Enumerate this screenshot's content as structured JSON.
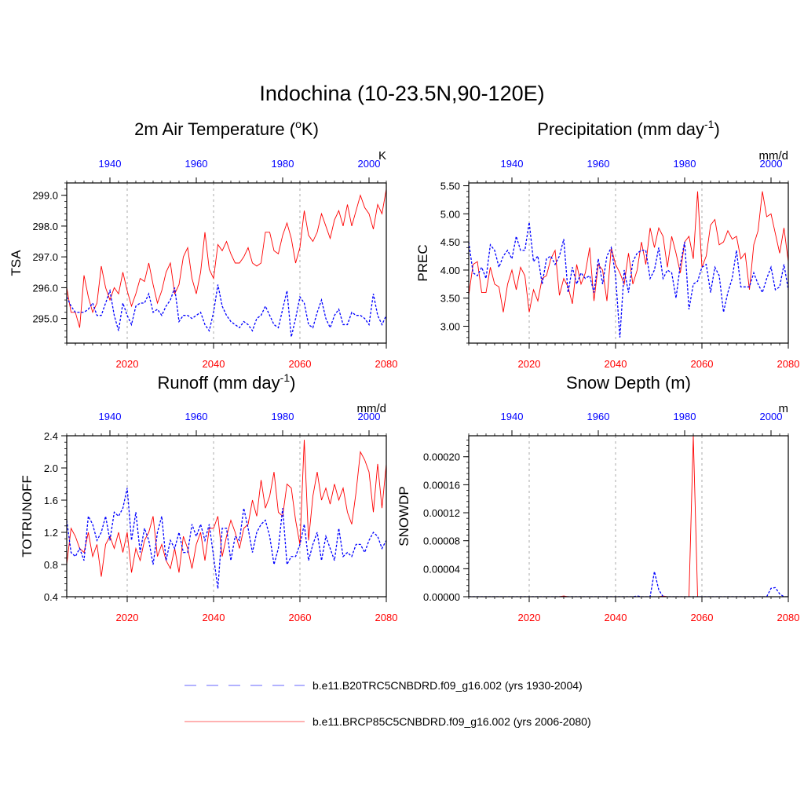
{
  "page_title": "Indochina (10-23.5N,90-120E)",
  "colors": {
    "historical": "#0000ff",
    "future": "#ff0000",
    "grid": "#aaaaaa",
    "axis": "#000000"
  },
  "chart_data": [
    {
      "type": "line",
      "id": "tsa",
      "title": "2m Air Temperature (",
      "title_sup": "o",
      "title_tail": "K)",
      "ylabel": "TSA",
      "units": "K",
      "ylim": [
        294.2,
        299.4
      ],
      "yticks": [
        295.0,
        296.0,
        297.0,
        298.0,
        299.0
      ],
      "ytick_labels": [
        "295.0",
        "296.0",
        "297.0",
        "298.0",
        "299.0"
      ],
      "bottom_axis": {
        "label_color": "#ff0000",
        "range": [
          2006,
          2080
        ],
        "ticks": [
          2020,
          2040,
          2060,
          2080
        ],
        "tick_labels": [
          "2020",
          "2040",
          "2060",
          "2080"
        ]
      },
      "top_axis": {
        "label_color": "#0000ff",
        "range": [
          1930,
          2004
        ],
        "ticks": [
          1940,
          1960,
          1980,
          2000
        ],
        "tick_labels": [
          "1940",
          "1960",
          "1980",
          "2000"
        ]
      },
      "series": [
        {
          "name": "b.e11.BRCP85C5CNBDRD.f09_g16.002 (yrs 2006-2080)",
          "axis": "bottom",
          "style": "solid",
          "x_start": 2006,
          "values": [
            296.0,
            295.2,
            295.2,
            294.7,
            296.4,
            295.7,
            295.2,
            295.5,
            296.7,
            296.0,
            295.6,
            296.0,
            295.8,
            296.5,
            295.9,
            295.4,
            295.8,
            296.3,
            296.2,
            296.8,
            296.1,
            295.5,
            295.9,
            296.5,
            296.8,
            295.8,
            296.1,
            297.0,
            297.3,
            296.3,
            295.8,
            296.5,
            297.8,
            296.6,
            296.3,
            297.4,
            297.2,
            297.5,
            297.1,
            296.8,
            296.8,
            297.0,
            297.3,
            296.8,
            296.7,
            296.8,
            297.8,
            297.8,
            297.2,
            297.1,
            297.7,
            298.1,
            297.6,
            296.8,
            297.3,
            298.5,
            297.7,
            297.5,
            297.8,
            298.4,
            298.0,
            297.6,
            298.2,
            298.5,
            298.0,
            298.7,
            298.0,
            298.5,
            299.0,
            298.6,
            298.4,
            297.9,
            298.7,
            298.4,
            299.2
          ]
        },
        {
          "name": "b.e11.B20TRC5CNBDRD.f09_g16.002 (yrs 1930-2004)",
          "axis": "top",
          "style": "dashed",
          "x_start": 1930,
          "values": [
            295.7,
            295.4,
            295.2,
            295.2,
            295.2,
            295.3,
            295.5,
            295.1,
            295.1,
            295.5,
            295.9,
            295.1,
            294.6,
            295.5,
            295.1,
            294.8,
            295.4,
            295.5,
            295.5,
            295.8,
            295.2,
            295.3,
            295.1,
            295.4,
            295.6,
            296.0,
            294.9,
            295.1,
            295.1,
            295.0,
            295.1,
            295.2,
            294.8,
            294.6,
            295.2,
            296.1,
            295.4,
            295.1,
            294.9,
            294.8,
            294.7,
            294.9,
            294.8,
            294.6,
            295.0,
            295.1,
            295.4,
            295.1,
            294.8,
            294.7,
            295.3,
            295.9,
            294.4,
            295.0,
            295.7,
            295.5,
            294.8,
            294.7,
            295.2,
            295.6,
            295.0,
            294.7,
            295.1,
            295.3,
            294.8,
            294.8,
            295.2,
            295.1,
            295.1,
            295.0,
            294.8,
            295.8,
            295.1,
            294.8,
            295.1
          ]
        }
      ]
    },
    {
      "type": "line",
      "id": "prec",
      "title": "Precipitation (mm day",
      "title_sup": "-1",
      "title_tail": ")",
      "ylabel": "PREC",
      "units": "mm/d",
      "ylim": [
        2.7,
        5.55
      ],
      "yticks": [
        3.0,
        3.5,
        4.0,
        4.5,
        5.0,
        5.5
      ],
      "ytick_labels": [
        "3.00",
        "3.50",
        "4.00",
        "4.50",
        "5.00",
        "5.50"
      ],
      "bottom_axis": {
        "label_color": "#ff0000",
        "range": [
          2006,
          2080
        ],
        "ticks": [
          2020,
          2040,
          2060,
          2080
        ],
        "tick_labels": [
          "2020",
          "2040",
          "2060",
          "2080"
        ]
      },
      "top_axis": {
        "label_color": "#0000ff",
        "range": [
          1930,
          2004
        ],
        "ticks": [
          1940,
          1960,
          1980,
          2000
        ],
        "tick_labels": [
          "1940",
          "1960",
          "1980",
          "2000"
        ]
      },
      "series": [
        {
          "name": "b.e11.BRCP85C5CNBDRD.f09_g16.002 (yrs 2006-2080)",
          "axis": "bottom",
          "style": "solid",
          "x_start": 2006,
          "values": [
            3.55,
            4.1,
            4.15,
            3.6,
            3.6,
            4.05,
            3.75,
            3.7,
            3.25,
            3.75,
            4.0,
            3.65,
            4.05,
            3.9,
            3.25,
            3.65,
            3.45,
            3.85,
            3.9,
            4.2,
            4.35,
            3.55,
            3.85,
            3.7,
            3.4,
            4.1,
            3.75,
            3.95,
            4.4,
            3.45,
            4.1,
            4.0,
            3.45,
            4.4,
            4.1,
            3.95,
            3.75,
            4.3,
            3.75,
            4.0,
            4.5,
            4.1,
            4.75,
            4.4,
            4.75,
            4.6,
            4.05,
            4.6,
            4.3,
            3.95,
            4.5,
            4.6,
            4.2,
            5.4,
            4.05,
            4.25,
            4.8,
            4.9,
            4.45,
            4.5,
            4.7,
            4.55,
            4.6,
            4.2,
            4.3,
            3.65,
            4.45,
            4.7,
            5.4,
            4.95,
            5.0,
            4.65,
            4.3,
            4.75,
            4.15
          ]
        },
        {
          "name": "b.e11.B20TRC5CNBDRD.f09_g16.002 (yrs 1930-2004)",
          "axis": "top",
          "style": "dashed",
          "x_start": 1930,
          "values": [
            4.5,
            3.95,
            3.9,
            4.05,
            3.85,
            4.45,
            4.35,
            4.05,
            4.25,
            4.35,
            4.2,
            4.6,
            4.35,
            4.35,
            4.85,
            4.15,
            4.25,
            3.75,
            4.2,
            4.25,
            4.1,
            4.25,
            4.55,
            3.6,
            4.05,
            3.75,
            3.95,
            3.85,
            3.9,
            3.6,
            4.2,
            3.75,
            4.25,
            4.4,
            3.9,
            2.8,
            4.0,
            3.6,
            4.15,
            4.3,
            4.35,
            4.35,
            3.85,
            4.0,
            4.4,
            3.85,
            4.0,
            3.95,
            3.5,
            4.1,
            4.5,
            3.3,
            3.75,
            3.8,
            4.05,
            4.1,
            3.6,
            4.05,
            3.9,
            3.25,
            3.6,
            3.85,
            4.35,
            3.7,
            3.7,
            3.7,
            3.95,
            3.75,
            3.6,
            3.85,
            4.05,
            3.65,
            3.7,
            4.1,
            3.65
          ]
        }
      ]
    },
    {
      "type": "line",
      "id": "runoff",
      "title": "Runoff (mm day",
      "title_sup": "-1",
      "title_tail": ")",
      "ylabel": "TOTRUNOFF",
      "units": "mm/d",
      "ylim": [
        0.4,
        2.4
      ],
      "yticks": [
        0.4,
        0.8,
        1.2,
        1.6,
        2.0,
        2.4
      ],
      "ytick_labels": [
        "0.4",
        "0.8",
        "1.2",
        "1.6",
        "2.0",
        "2.4"
      ],
      "bottom_axis": {
        "label_color": "#ff0000",
        "range": [
          2006,
          2080
        ],
        "ticks": [
          2020,
          2040,
          2060,
          2080
        ],
        "tick_labels": [
          "2020",
          "2040",
          "2060",
          "2080"
        ]
      },
      "top_axis": {
        "label_color": "#0000ff",
        "range": [
          1930,
          2004
        ],
        "ticks": [
          1940,
          1960,
          1980,
          2000
        ],
        "tick_labels": [
          "1940",
          "1960",
          "1980",
          "2000"
        ]
      },
      "series": [
        {
          "name": "b.e11.BRCP85C5CNBDRD.f09_g16.002 (yrs 2006-2080)",
          "axis": "bottom",
          "style": "solid",
          "x_start": 2006,
          "values": [
            0.8,
            1.25,
            1.15,
            1.0,
            0.95,
            1.2,
            0.9,
            1.05,
            0.65,
            1.05,
            1.15,
            1.0,
            1.2,
            0.95,
            1.2,
            0.7,
            1.0,
            0.85,
            1.1,
            1.2,
            1.4,
            0.9,
            1.05,
            0.85,
            0.75,
            1.0,
            0.7,
            1.15,
            1.0,
            0.75,
            1.05,
            1.2,
            0.85,
            1.25,
            1.25,
            1.4,
            0.9,
            1.15,
            1.35,
            1.2,
            1.0,
            1.25,
            1.3,
            1.6,
            1.4,
            1.85,
            1.5,
            1.65,
            1.95,
            1.45,
            1.4,
            1.8,
            1.75,
            1.35,
            1.05,
            2.35,
            1.1,
            1.65,
            1.95,
            1.6,
            1.75,
            1.55,
            1.8,
            1.6,
            1.75,
            1.45,
            1.3,
            1.7,
            2.2,
            2.1,
            1.95,
            1.45,
            2.05,
            1.5,
            2.05
          ]
        },
        {
          "name": "b.e11.B20TRC5CNBDRD.f09_g16.002 (yrs 1930-2004)",
          "axis": "top",
          "style": "dashed",
          "x_start": 1930,
          "values": [
            1.35,
            0.95,
            0.9,
            1.0,
            0.85,
            1.4,
            1.3,
            1.1,
            1.2,
            1.4,
            1.1,
            1.45,
            1.4,
            1.5,
            1.75,
            1.1,
            1.45,
            0.95,
            1.25,
            1.1,
            0.8,
            1.2,
            1.4,
            0.85,
            1.1,
            1.0,
            1.2,
            0.95,
            0.95,
            1.3,
            1.15,
            1.3,
            1.1,
            1.3,
            0.9,
            0.5,
            1.25,
            1.25,
            0.85,
            1.15,
            1.1,
            1.5,
            1.25,
            0.95,
            1.2,
            1.3,
            1.35,
            1.15,
            0.8,
            1.0,
            1.5,
            0.8,
            0.9,
            0.9,
            1.05,
            1.3,
            0.85,
            1.05,
            1.2,
            0.85,
            1.15,
            1.0,
            0.85,
            1.25,
            0.9,
            0.95,
            0.9,
            1.05,
            1.05,
            0.95,
            1.1,
            1.2,
            1.15,
            1.0,
            1.1
          ]
        }
      ]
    },
    {
      "type": "line",
      "id": "snowdp",
      "title": "Snow Depth (m)",
      "title_sup": "",
      "title_tail": "",
      "ylabel": "SNOWDP",
      "units": "m",
      "ylim": [
        0.0,
        0.00023
      ],
      "yticks": [
        0.0,
        4e-05,
        8e-05,
        0.00012,
        0.00016,
        0.0002
      ],
      "ytick_labels": [
        "0.00000",
        "0.00004",
        "0.00008",
        "0.00012",
        "0.00016",
        "0.00020"
      ],
      "bottom_axis": {
        "label_color": "#ff0000",
        "range": [
          2006,
          2080
        ],
        "ticks": [
          2020,
          2040,
          2060,
          2080
        ],
        "tick_labels": [
          "2020",
          "2040",
          "2060",
          "2080"
        ]
      },
      "top_axis": {
        "label_color": "#0000ff",
        "range": [
          1930,
          2004
        ],
        "ticks": [
          1940,
          1960,
          1980,
          2000
        ],
        "tick_labels": [
          "1940",
          "1960",
          "1980",
          "2000"
        ]
      },
      "series": [
        {
          "name": "b.e11.BRCP85C5CNBDRD.f09_g16.002 (yrs 2006-2080)",
          "axis": "bottom",
          "style": "solid",
          "x_start": 2006,
          "values": [
            0,
            0,
            0,
            0,
            0,
            0,
            0,
            0,
            0,
            0,
            0,
            0,
            0,
            0,
            0,
            0,
            0,
            0,
            0,
            0,
            0,
            0,
            1e-06,
            0,
            0,
            0,
            0,
            0,
            0,
            0,
            0,
            0,
            0,
            0,
            0,
            0,
            0,
            0,
            0,
            0,
            0,
            0,
            0,
            0,
            0,
            1e-06,
            0,
            0,
            0,
            0,
            0,
            0,
            0.00023,
            0,
            0,
            0,
            0,
            0,
            0,
            0,
            0,
            0,
            0,
            0,
            0,
            0,
            0,
            0,
            0,
            0,
            0,
            0,
            0,
            0,
            0
          ]
        },
        {
          "name": "b.e11.B20TRC5CNBDRD.f09_g16.002 (yrs 1930-2004)",
          "axis": "top",
          "style": "dashed",
          "x_start": 1930,
          "values": [
            0,
            0,
            0,
            0,
            0,
            0,
            0,
            0,
            0,
            0,
            0,
            0,
            0,
            0,
            0,
            0,
            0,
            0,
            0,
            0,
            0,
            0,
            0,
            0,
            0,
            0,
            0,
            0,
            0,
            0,
            0,
            0,
            0,
            0,
            0,
            0,
            0,
            0,
            0,
            1e-06,
            0,
            0,
            0,
            3.6e-05,
            1e-05,
            0,
            0,
            0,
            0,
            0,
            0,
            0,
            0,
            0,
            0,
            0,
            0,
            0,
            0,
            0,
            0,
            0,
            0,
            0,
            0,
            0,
            0,
            0,
            0,
            0,
            1.2e-05,
            1.3e-05,
            4e-06,
            0,
            0
          ]
        }
      ]
    }
  ],
  "legend": [
    {
      "label": "b.e11.B20TRC5CNBDRD.f09_g16.002 (yrs 1930-2004)",
      "style": "dashed",
      "color": "#0000ff"
    },
    {
      "label": "b.e11.BRCP85C5CNBDRD.f09_g16.002 (yrs 2006-2080)",
      "style": "solid",
      "color": "#ff0000"
    }
  ]
}
